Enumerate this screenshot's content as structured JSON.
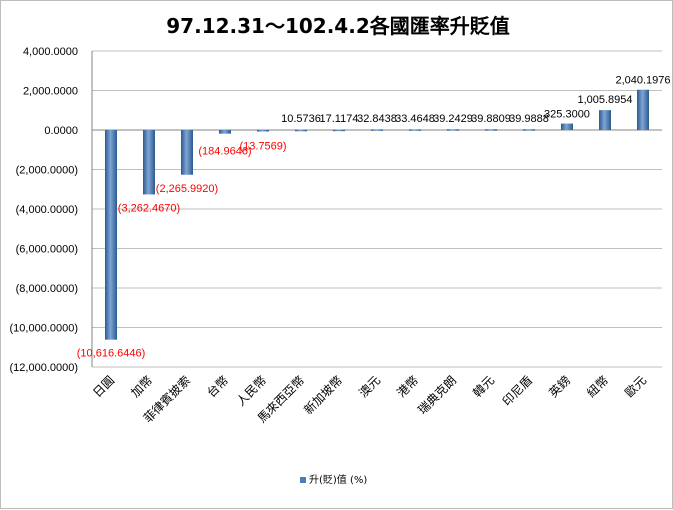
{
  "chart_data": {
    "type": "bar",
    "title": "97.12.31～102.4.2各國匯率升貶值",
    "categories": [
      "日圓",
      "加幣",
      "菲律賓披索",
      "台幣",
      "人民幣",
      "馬來西亞幣",
      "新加坡幣",
      "澳元",
      "港幣",
      "瑞典克朗",
      "韓元",
      "印尼盾",
      "英鎊",
      "紐幣",
      "歐元"
    ],
    "series": [
      {
        "name": "升(貶)值  (%)",
        "values": [
          -10616.6446,
          -3262.467,
          -2265.992,
          -184.9646,
          -13.7569,
          10.5736,
          17.1174,
          32.8438,
          33.4648,
          39.2429,
          39.8809,
          39.9888,
          325.3,
          1005.8954,
          2040.1976
        ]
      }
    ],
    "data_labels": [
      "(10,616.6446)",
      "(3,262.4670)",
      "(2,265.9920)",
      "(184.9646)",
      "(13.7569)",
      "10.5736",
      "17.1174",
      "32.8438",
      "33.4648",
      "39.2429",
      "39.8809",
      "39.9888",
      "325.3000",
      "1,005.8954",
      "2,040.1976"
    ],
    "y_ticks": [
      4000,
      2000,
      0,
      -2000,
      -4000,
      -6000,
      -8000,
      -10000,
      -12000
    ],
    "y_tick_labels": [
      "4,000.0000",
      "2,000.0000",
      "0.0000",
      "(2,000.0000)",
      "(4,000.0000)",
      "(6,000.0000)",
      "(8,000.0000)",
      "(10,000.0000)",
      "(12,000.0000)"
    ],
    "ylim": [
      -12000,
      4000
    ],
    "grid": true,
    "legend_position": "bottom",
    "colors": {
      "bar": "#4a7ebb",
      "bar_dark": "#2c5a8e",
      "bar_light": "#7ea6d6",
      "negative_label": "#ff0000",
      "positive_label": "#000000",
      "grid": "#bfbfbf",
      "axis": "#868686"
    }
  }
}
